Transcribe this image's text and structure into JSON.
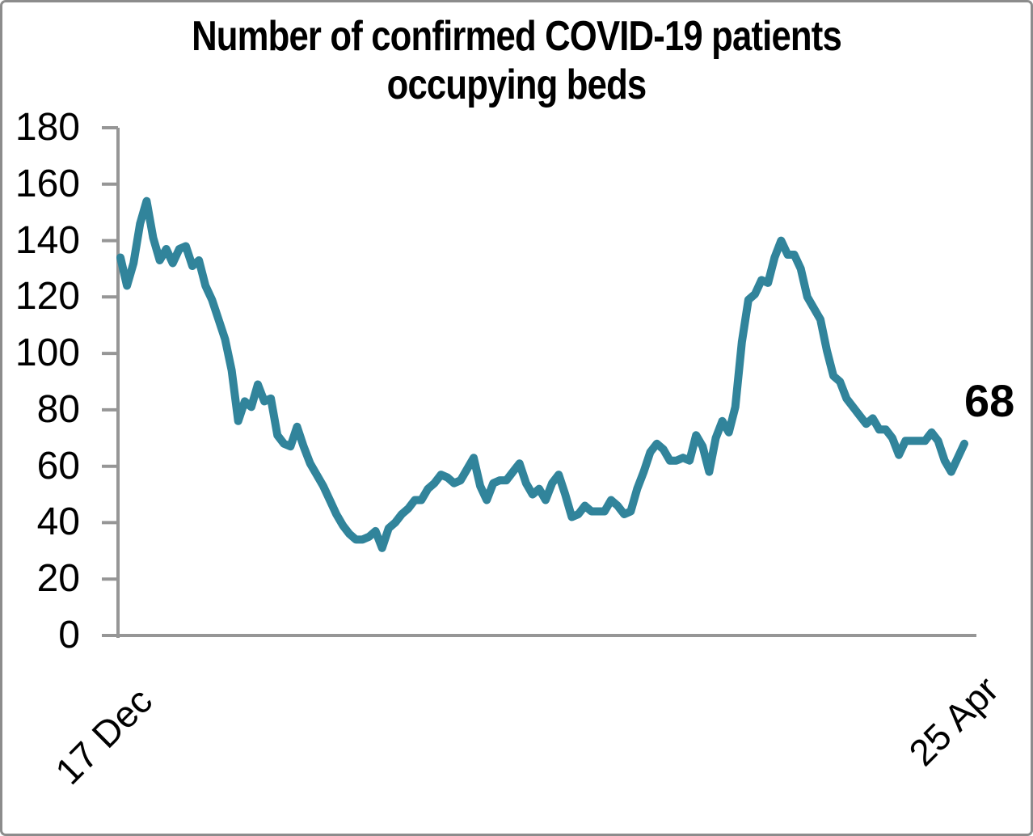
{
  "chart": {
    "title_line1": "Number of confirmed COVID-19 patients",
    "title_line2": "occupying beds",
    "end_value_label": "68",
    "x_axis": {
      "start_label": "17 Dec",
      "end_label": "25 Apr"
    },
    "y_axis": {
      "min": 0,
      "max": 180,
      "tick_step": 20
    }
  },
  "chart_data": {
    "type": "line",
    "title": "Number of confirmed COVID-19 patients occupying beds",
    "x_start": "17 Dec",
    "x_end": "25 Apr",
    "x_frequency": "daily",
    "xlabel": "",
    "ylabel": "",
    "ylim": [
      0,
      180
    ],
    "y_ticks": [
      0,
      20,
      40,
      60,
      80,
      100,
      120,
      140,
      160,
      180
    ],
    "grid": false,
    "legend": false,
    "line_color": "#31849B",
    "axis_color": "#969696",
    "end_annotation": "68",
    "values": [
      134,
      124,
      132,
      146,
      154,
      141,
      133,
      137,
      132,
      137,
      138,
      131,
      133,
      124,
      119,
      112,
      105,
      94,
      76,
      83,
      81,
      89,
      83,
      84,
      71,
      68,
      67,
      74,
      67,
      61,
      57,
      53,
      48,
      43,
      39,
      36,
      34,
      34,
      35,
      37,
      31,
      38,
      40,
      43,
      45,
      48,
      48,
      52,
      54,
      57,
      56,
      54,
      55,
      59,
      63,
      53,
      48,
      54,
      55,
      55,
      58,
      61,
      54,
      50,
      52,
      48,
      54,
      57,
      50,
      42,
      43,
      46,
      44,
      44,
      44,
      48,
      46,
      43,
      44,
      52,
      58,
      65,
      68,
      66,
      62,
      62,
      63,
      62,
      71,
      67,
      58,
      70,
      76,
      72,
      81,
      104,
      119,
      121,
      126,
      125,
      134,
      140,
      135,
      135,
      130,
      120,
      116,
      112,
      101,
      92,
      90,
      84,
      81,
      78,
      75,
      77,
      73,
      73,
      70,
      64,
      69,
      69,
      69,
      69,
      72,
      69,
      62,
      58,
      63,
      68
    ]
  }
}
